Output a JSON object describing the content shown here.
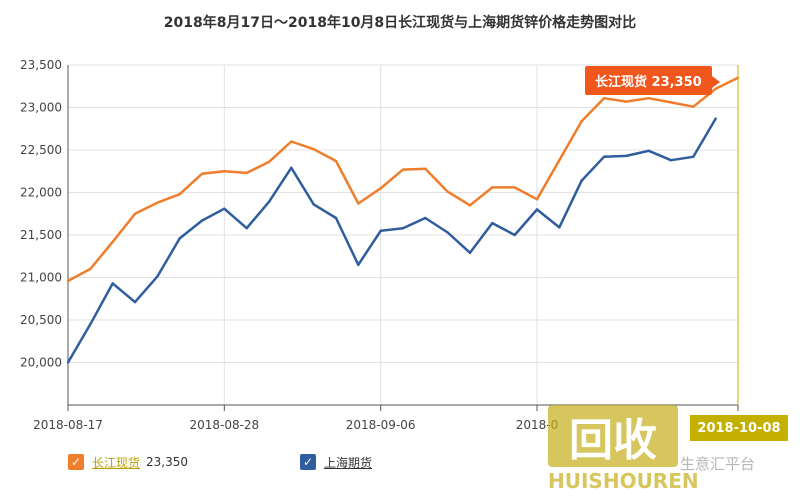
{
  "chart_data": {
    "type": "line",
    "title": "2018年8月17日～2018年10月8日长江现货与上海期货锌价格走势图对比",
    "x": [
      "2018-08-17",
      "2018-08-20",
      "2018-08-21",
      "2018-08-22",
      "2018-08-23",
      "2018-08-24",
      "2018-08-27",
      "2018-08-28",
      "2018-08-29",
      "2018-08-30",
      "2018-08-31",
      "2018-09-03",
      "2018-09-04",
      "2018-09-05",
      "2018-09-06",
      "2018-09-07",
      "2018-09-10",
      "2018-09-11",
      "2018-09-12",
      "2018-09-13",
      "2018-09-14",
      "2018-09-17",
      "2018-09-18",
      "2018-09-19",
      "2018-09-20",
      "2018-09-21",
      "2018-09-25",
      "2018-09-26",
      "2018-09-27",
      "2018-09-28",
      "2018-10-08"
    ],
    "x_tick_labels": [
      "2018-08-17",
      "2018-08-28",
      "2018-09-06",
      "2018-0",
      "2018-10-08"
    ],
    "y_ticks": [
      20000,
      20500,
      21000,
      21500,
      22000,
      22500,
      23000,
      23500
    ],
    "y_tick_labels": [
      "20,000",
      "20,500",
      "21,000",
      "21,500",
      "22,000",
      "22,500",
      "23,000",
      "23,500"
    ],
    "ylim": [
      19500,
      23500
    ],
    "series": [
      {
        "name": "长江现货",
        "color": "#f07d2b",
        "values": [
          20960,
          21100,
          21420,
          21750,
          21880,
          21980,
          22220,
          22250,
          22230,
          22360,
          22600,
          22510,
          22370,
          21870,
          22050,
          22270,
          22280,
          22010,
          21850,
          22060,
          22060,
          21920,
          22380,
          22840,
          23110,
          23070,
          23110,
          23060,
          23010,
          23220,
          23350
        ]
      },
      {
        "name": "上海期货",
        "color": "#2f5d9e",
        "values": [
          20000,
          20450,
          20930,
          20710,
          21010,
          21460,
          21670,
          21810,
          21580,
          21890,
          22290,
          21860,
          21700,
          21150,
          21550,
          21580,
          21700,
          21530,
          21290,
          21640,
          21500,
          21800,
          21590,
          22140,
          22420,
          22430,
          22490,
          22380,
          22420,
          22870,
          null
        ]
      }
    ],
    "legend": [
      {
        "label": "长江现货",
        "value": "23,350"
      },
      {
        "label": "上海期货"
      }
    ],
    "tooltip_text": "长江现货 23,350",
    "x_cursor_label": "2018-10-08",
    "grid": true,
    "legend_position": "bottom"
  },
  "watermark": {
    "logo": "回收",
    "sub": "HUISHOUREN",
    "side": "生意汇平台"
  },
  "check_glyph": "✓"
}
